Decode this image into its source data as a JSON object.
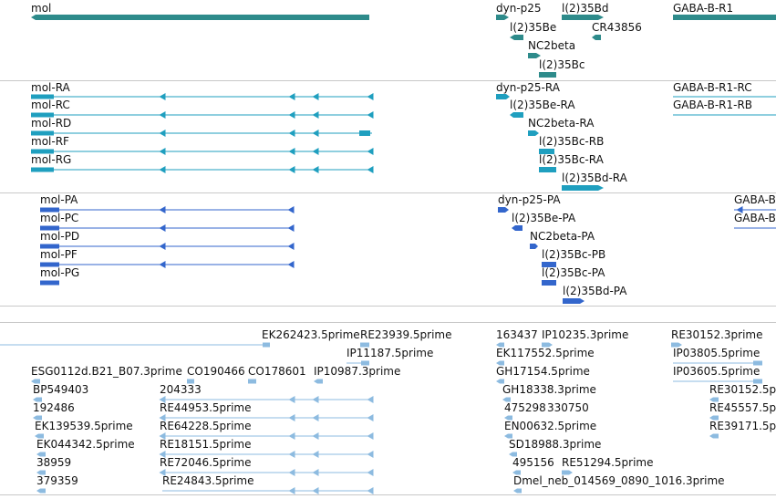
{
  "colors": {
    "gene": "#2e8b8b",
    "rna": "#1f9fbf",
    "protein": "#3366cc",
    "est": "#8dbbe0",
    "divider": "#c8c8c8"
  },
  "tracks": {
    "genes": {
      "mol": "mol",
      "dyn_p25": "dyn-p25",
      "l2_35Bd": "l(2)35Bd",
      "gaba_b_r1": "GABA-B-R1",
      "l2_35Be": "l(2)35Be",
      "cr43856": "CR43856",
      "nc2beta": "NC2beta",
      "l2_35Bc": "l(2)35Bc"
    },
    "transcripts": {
      "mol_ra": "mol-RA",
      "mol_rc": "mol-RC",
      "mol_rd": "mol-RD",
      "mol_rf": "mol-RF",
      "mol_rg": "mol-RG",
      "dyn_p25_ra": "dyn-p25-RA",
      "l2_35Be_ra": "l(2)35Be-RA",
      "nc2beta_ra": "NC2beta-RA",
      "l2_35Bc_rb": "l(2)35Bc-RB",
      "l2_35Bc_ra": "l(2)35Bc-RA",
      "l2_35Bd_ra": "l(2)35Bd-RA",
      "gaba_rc": "GABA-B-R1-RC",
      "gaba_rb": "GABA-B-R1-RB"
    },
    "proteins": {
      "mol_pa": "mol-PA",
      "mol_pc": "mol-PC",
      "mol_pd": "mol-PD",
      "mol_pf": "mol-PF",
      "mol_pg": "mol-PG",
      "dyn_p25_pa": "dyn-p25-PA",
      "l2_35Be_pa": "l(2)35Be-PA",
      "nc2beta_pa": "NC2beta-PA",
      "l2_35Bc_pb": "l(2)35Bc-PB",
      "l2_35Bc_pa": "l(2)35Bc-PA",
      "l2_35Bd_pa": "l(2)35Bd-PA",
      "gaba_pa": "GABA-B",
      "gaba_pb": "GABA-B"
    },
    "ests": {
      "ek262423": "EK262423.5prime",
      "re23939": "RE23939.5prime",
      "ip11187": "IP11187.5prime",
      "esg0112d": "ESG0112d.B21_B07.3prime",
      "co190466": "CO190466",
      "co178601": "CO178601",
      "ip10987": "IP10987.3prime",
      "bp549403": "BP549403",
      "n204333": "204333",
      "n192486": "192486",
      "re44953": "RE44953.5prime",
      "ek139539": "EK139539.5prime",
      "re64228": "RE64228.5prime",
      "ek044342": "EK044342.5prime",
      "re18151": "RE18151.5prime",
      "n38959": "38959",
      "re72046": "RE72046.5prime",
      "n379359": "379359",
      "re24843": "RE24843.5prime",
      "n163437": "163437",
      "ip10235": "IP10235.3prime",
      "ek117552": "EK117552.5prime",
      "gh17154": "GH17154.5prime",
      "gh18338": "GH18338.3prime",
      "n475298": "475298",
      "n330750": "330750",
      "en00632": "EN00632.5prime",
      "sd18988": "SD18988.3prime",
      "n495156": "495156",
      "re51294": "RE51294.5prime",
      "dmel_neb": "Dmel_neb_014569_0890_1016.3prime",
      "re30152_a": "RE30152.3prime",
      "ip03805": "IP03805.5prime",
      "ip03605": "IP03605.5prime",
      "re30152_b": "RE30152.5p",
      "re45557": "RE45557.5p",
      "re39171": "RE39171.5p"
    }
  }
}
